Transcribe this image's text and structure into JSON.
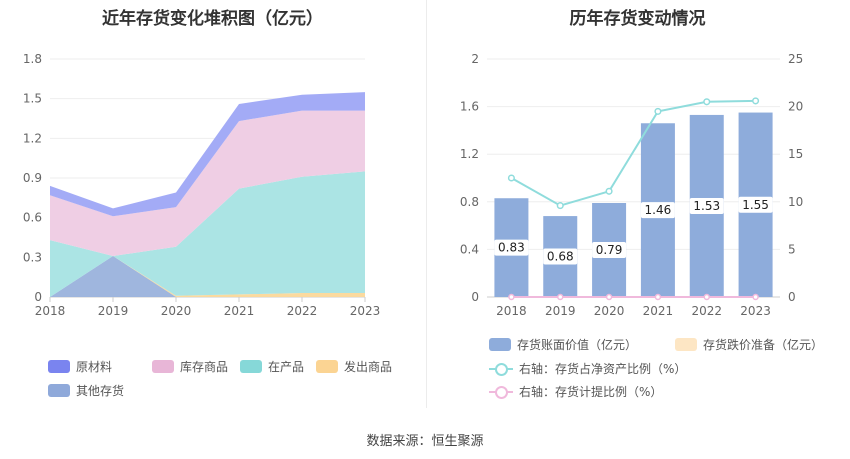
{
  "chart_data": [
    {
      "type": "area",
      "stacked": true,
      "title": "近年存货变化堆积图（亿元）",
      "categories": [
        "2018",
        "2019",
        "2020",
        "2021",
        "2022",
        "2023"
      ],
      "y_ticks": [
        "0",
        "0.3",
        "0.6",
        "0.9",
        "1.2",
        "1.5",
        "1.8"
      ],
      "ylim": [
        0,
        1.8
      ],
      "series": [
        {
          "name": "其他存货",
          "color": "#9ab2dc",
          "values": [
            0.0,
            0.31,
            0.0,
            0.0,
            0.0,
            0.0
          ]
        },
        {
          "name": "发出商品",
          "color": "#fbd89a",
          "values": [
            0.0,
            0.0,
            0.01,
            0.02,
            0.03,
            0.03
          ]
        },
        {
          "name": "在产品",
          "color": "#a6e3e3",
          "values": [
            0.43,
            0.0,
            0.37,
            0.8,
            0.88,
            0.92
          ]
        },
        {
          "name": "库存商品",
          "color": "#eecbe3",
          "values": [
            0.34,
            0.3,
            0.3,
            0.51,
            0.5,
            0.46
          ]
        },
        {
          "name": "原材料",
          "color": "#9ea7f5",
          "values": [
            0.07,
            0.06,
            0.11,
            0.13,
            0.12,
            0.14
          ]
        }
      ],
      "legend": [
        {
          "name": "原材料",
          "color": "#7a84ef"
        },
        {
          "name": "库存商品",
          "color": "#e8b6d7"
        },
        {
          "name": "在产品",
          "color": "#86d8d8"
        },
        {
          "name": "发出商品",
          "color": "#fbd493"
        },
        {
          "name": "其他存货",
          "color": "#8fa9da"
        }
      ],
      "legend_position": "bottom"
    },
    {
      "type": "bar",
      "title": "历年存货变动情况",
      "categories": [
        "2018",
        "2019",
        "2020",
        "2021",
        "2022",
        "2023"
      ],
      "y_left_ticks": [
        "0",
        "0.4",
        "0.8",
        "1.2",
        "1.6",
        "2"
      ],
      "y_right_ticks": [
        "0",
        "5",
        "10",
        "15",
        "20",
        "25"
      ],
      "ylim_left": [
        0,
        2
      ],
      "ylim_right": [
        0,
        25
      ],
      "bars": {
        "name": "存货账面价值（亿元）",
        "color": "#8eacdb",
        "values": [
          0.83,
          0.68,
          0.79,
          1.46,
          1.53,
          1.55
        ],
        "labels": [
          "0.83",
          "0.68",
          "0.79",
          "1.46",
          "1.53",
          "1.55"
        ]
      },
      "bars2": {
        "name": "存货跌价准备（亿元）",
        "color": "#fde6c4",
        "values": [
          0,
          0,
          0,
          0,
          0,
          0
        ]
      },
      "line1": {
        "name": "右轴：存货占净资产比例（%）",
        "color": "#8fdcdc",
        "values": [
          12.5,
          9.6,
          11.1,
          19.5,
          20.5,
          20.6
        ]
      },
      "line2": {
        "name": "右轴：存货计提比例（%）",
        "color": "#f0b9dc",
        "values": [
          0,
          0,
          0,
          0,
          0,
          0
        ]
      },
      "legend_position": "bottom"
    }
  ],
  "source": "数据来源：恒生聚源"
}
